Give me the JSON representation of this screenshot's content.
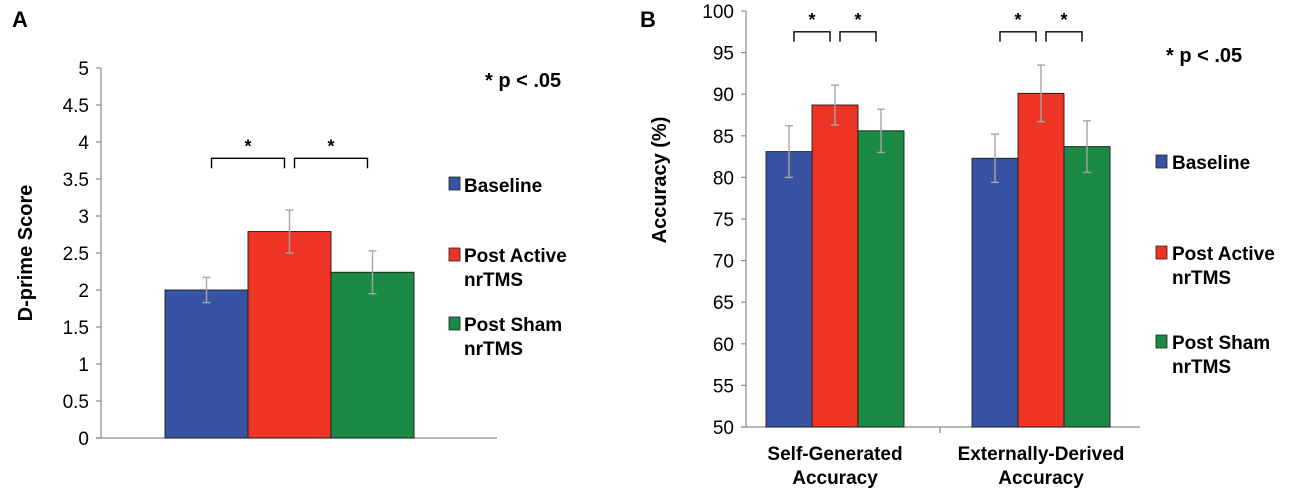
{
  "chart_data": [
    {
      "panel": "A",
      "type": "bar",
      "ylabel": "D-prime Score",
      "ylim": [
        0,
        5
      ],
      "yticks": [
        "0",
        "0.5",
        "1",
        "1.5",
        "2",
        "2.5",
        "3",
        "3.5",
        "4",
        "4.5",
        "5"
      ],
      "categories": [
        ""
      ],
      "series": [
        {
          "name": "Baseline",
          "values": [
            2.0
          ],
          "errors": [
            0.17
          ]
        },
        {
          "name": "Post Active nrTMS",
          "values": [
            2.79
          ],
          "errors": [
            0.29
          ]
        },
        {
          "name": "Post Sham nrTMS",
          "values": [
            2.24
          ],
          "errors": [
            0.29
          ]
        }
      ],
      "significance": [
        {
          "between": [
            0,
            1
          ],
          "label": "*",
          "level": 3.78
        },
        {
          "between": [
            1,
            2
          ],
          "label": "*",
          "level": 3.78
        }
      ],
      "annotation": "* p < .05",
      "legend": [
        "Baseline",
        "Post Active nrTMS",
        "Post Sham nrTMS"
      ]
    },
    {
      "panel": "B",
      "type": "bar",
      "ylabel": "Accuracy (%)",
      "ylim": [
        50,
        100
      ],
      "yticks": [
        "50",
        "55",
        "60",
        "65",
        "70",
        "75",
        "80",
        "85",
        "90",
        "95",
        "100"
      ],
      "categories": [
        "Self-Generated Accuracy",
        "Externally-Derived Accuracy"
      ],
      "series": [
        {
          "name": "Baseline",
          "values": [
            83.1,
            82.3
          ],
          "errors": [
            3.1,
            2.9
          ]
        },
        {
          "name": "Post Active nrTMS",
          "values": [
            88.7,
            90.1
          ],
          "errors": [
            2.4,
            3.4
          ]
        },
        {
          "name": "Post Sham nrTMS",
          "values": [
            85.6,
            83.7
          ],
          "errors": [
            2.6,
            3.1
          ]
        }
      ],
      "significance": [
        {
          "category": 0,
          "between": [
            0,
            1
          ],
          "label": "*",
          "level": 97.5
        },
        {
          "category": 0,
          "between": [
            1,
            2
          ],
          "label": "*",
          "level": 97.5
        },
        {
          "category": 1,
          "between": [
            0,
            1
          ],
          "label": "*",
          "level": 97.5
        },
        {
          "category": 1,
          "between": [
            1,
            2
          ],
          "label": "*",
          "level": 97.5
        }
      ],
      "annotation": "* p < .05",
      "legend": [
        "Baseline",
        "Post Active nrTMS",
        "Post Sham nrTMS"
      ]
    }
  ],
  "colors": {
    "baseline": "#3853a4",
    "post_active": "#ee3424",
    "post_sham": "#1a8a44",
    "axis": "#8c8c8c",
    "error_bar": "#a6a6a6"
  }
}
